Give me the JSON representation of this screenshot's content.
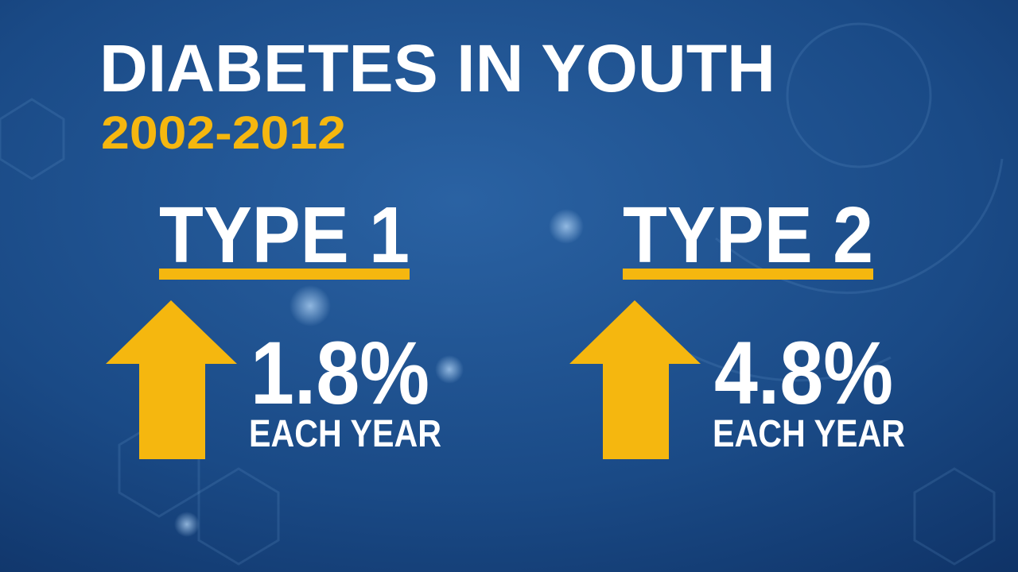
{
  "header": {
    "title": "DIABETES IN YOUTH",
    "subtitle": "2002-2012"
  },
  "panels": [
    {
      "label": "TYPE 1",
      "value": "1.8%",
      "caption": "EACH YEAR"
    },
    {
      "label": "TYPE 2",
      "value": "4.8%",
      "caption": "EACH YEAR"
    }
  ]
}
